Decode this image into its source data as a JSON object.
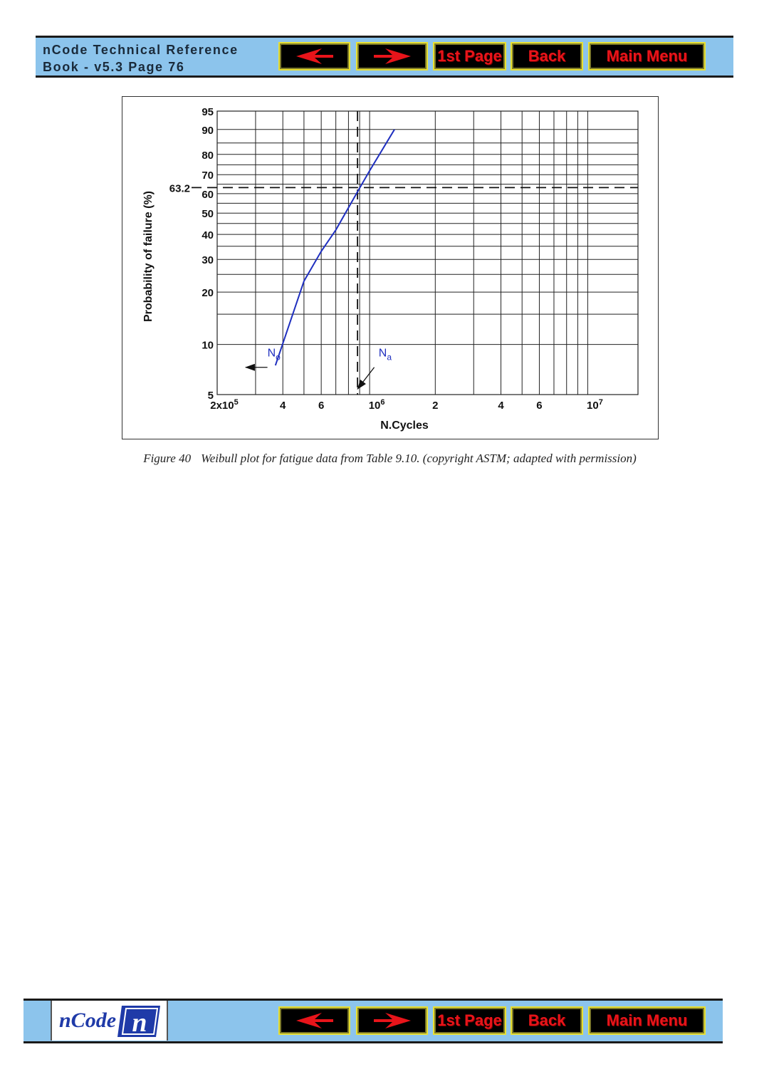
{
  "header": {
    "title_line1": "nCode Technical Reference",
    "title_line2": "Book - v5.3  Page 76"
  },
  "nav": {
    "prev_icon": "left-arrow-icon",
    "next_icon": "right-arrow-icon",
    "first_page_label": "1st Page",
    "back_label": "Back",
    "main_menu_label": "Main Menu"
  },
  "footer": {
    "logo_text": "nCode",
    "logo_mark": "n"
  },
  "colors": {
    "nav_background": "#8cc4ec",
    "button_background": "#000000",
    "button_border": "#e8e033",
    "button_text": "#e8141a",
    "curve": "#1f2fbf"
  },
  "caption": {
    "figure_number": "Figure 40",
    "text": "Weibull plot for fatigue data from Table 9.10. (copyright ASTM; adapted with permission)"
  },
  "chart_data": {
    "type": "line",
    "x_scale": "log",
    "y_scale": "weibull",
    "xlabel": "N.Cycles",
    "ylabel": "Probability of failure (%)",
    "xlim": [
      200000,
      17000000
    ],
    "ylim": [
      5,
      95
    ],
    "x_tick_labels": [
      {
        "value": 200000,
        "base": "2x10",
        "exp": "5"
      },
      {
        "value": 400000,
        "base": "4",
        "exp": ""
      },
      {
        "value": 600000,
        "base": "6",
        "exp": ""
      },
      {
        "value": 1000000,
        "base": "10",
        "exp": "6"
      },
      {
        "value": 2000000,
        "base": "2",
        "exp": ""
      },
      {
        "value": 4000000,
        "base": "4",
        "exp": ""
      },
      {
        "value": 6000000,
        "base": "6",
        "exp": ""
      },
      {
        "value": 10000000,
        "base": "10",
        "exp": "7"
      }
    ],
    "x_gridlines": [
      200000,
      300000,
      400000,
      500000,
      600000,
      700000,
      800000,
      900000,
      1000000,
      2000000,
      3000000,
      4000000,
      5000000,
      6000000,
      7000000,
      8000000,
      9000000,
      10000000,
      17000000
    ],
    "y_ticks": [
      5,
      10,
      20,
      30,
      40,
      50,
      60,
      70,
      80,
      90,
      95
    ],
    "y_gridlines": [
      5,
      10,
      15,
      20,
      25,
      30,
      35,
      40,
      45,
      50,
      55,
      60,
      65,
      70,
      75,
      80,
      85,
      90,
      95
    ],
    "series": [
      {
        "x": [
          370000,
          500000,
          600000,
          700000,
          870000,
          1000000,
          1300000
        ],
        "y": [
          7.5,
          23,
          33,
          42,
          60,
          72,
          90
        ]
      }
    ],
    "reference_lines": [
      {
        "axis": "y",
        "value": 63.2,
        "label": "63.2",
        "style": "dashed"
      },
      {
        "axis": "x",
        "value": 880000,
        "style": "dashed"
      }
    ],
    "annotations": [
      {
        "text": "N",
        "sub": "o",
        "x": 340000,
        "y": 8.5,
        "arrow_to": [
          270000,
          7.3
        ],
        "arrow_from": [
          340000,
          7.3
        ]
      },
      {
        "text": "N",
        "sub": "a",
        "x": 1100000,
        "y": 8.5,
        "arrow_from": [
          1050000,
          7.3
        ],
        "arrow_to": [
          880000,
          5.4
        ]
      }
    ],
    "grid": true,
    "legend": "none"
  }
}
